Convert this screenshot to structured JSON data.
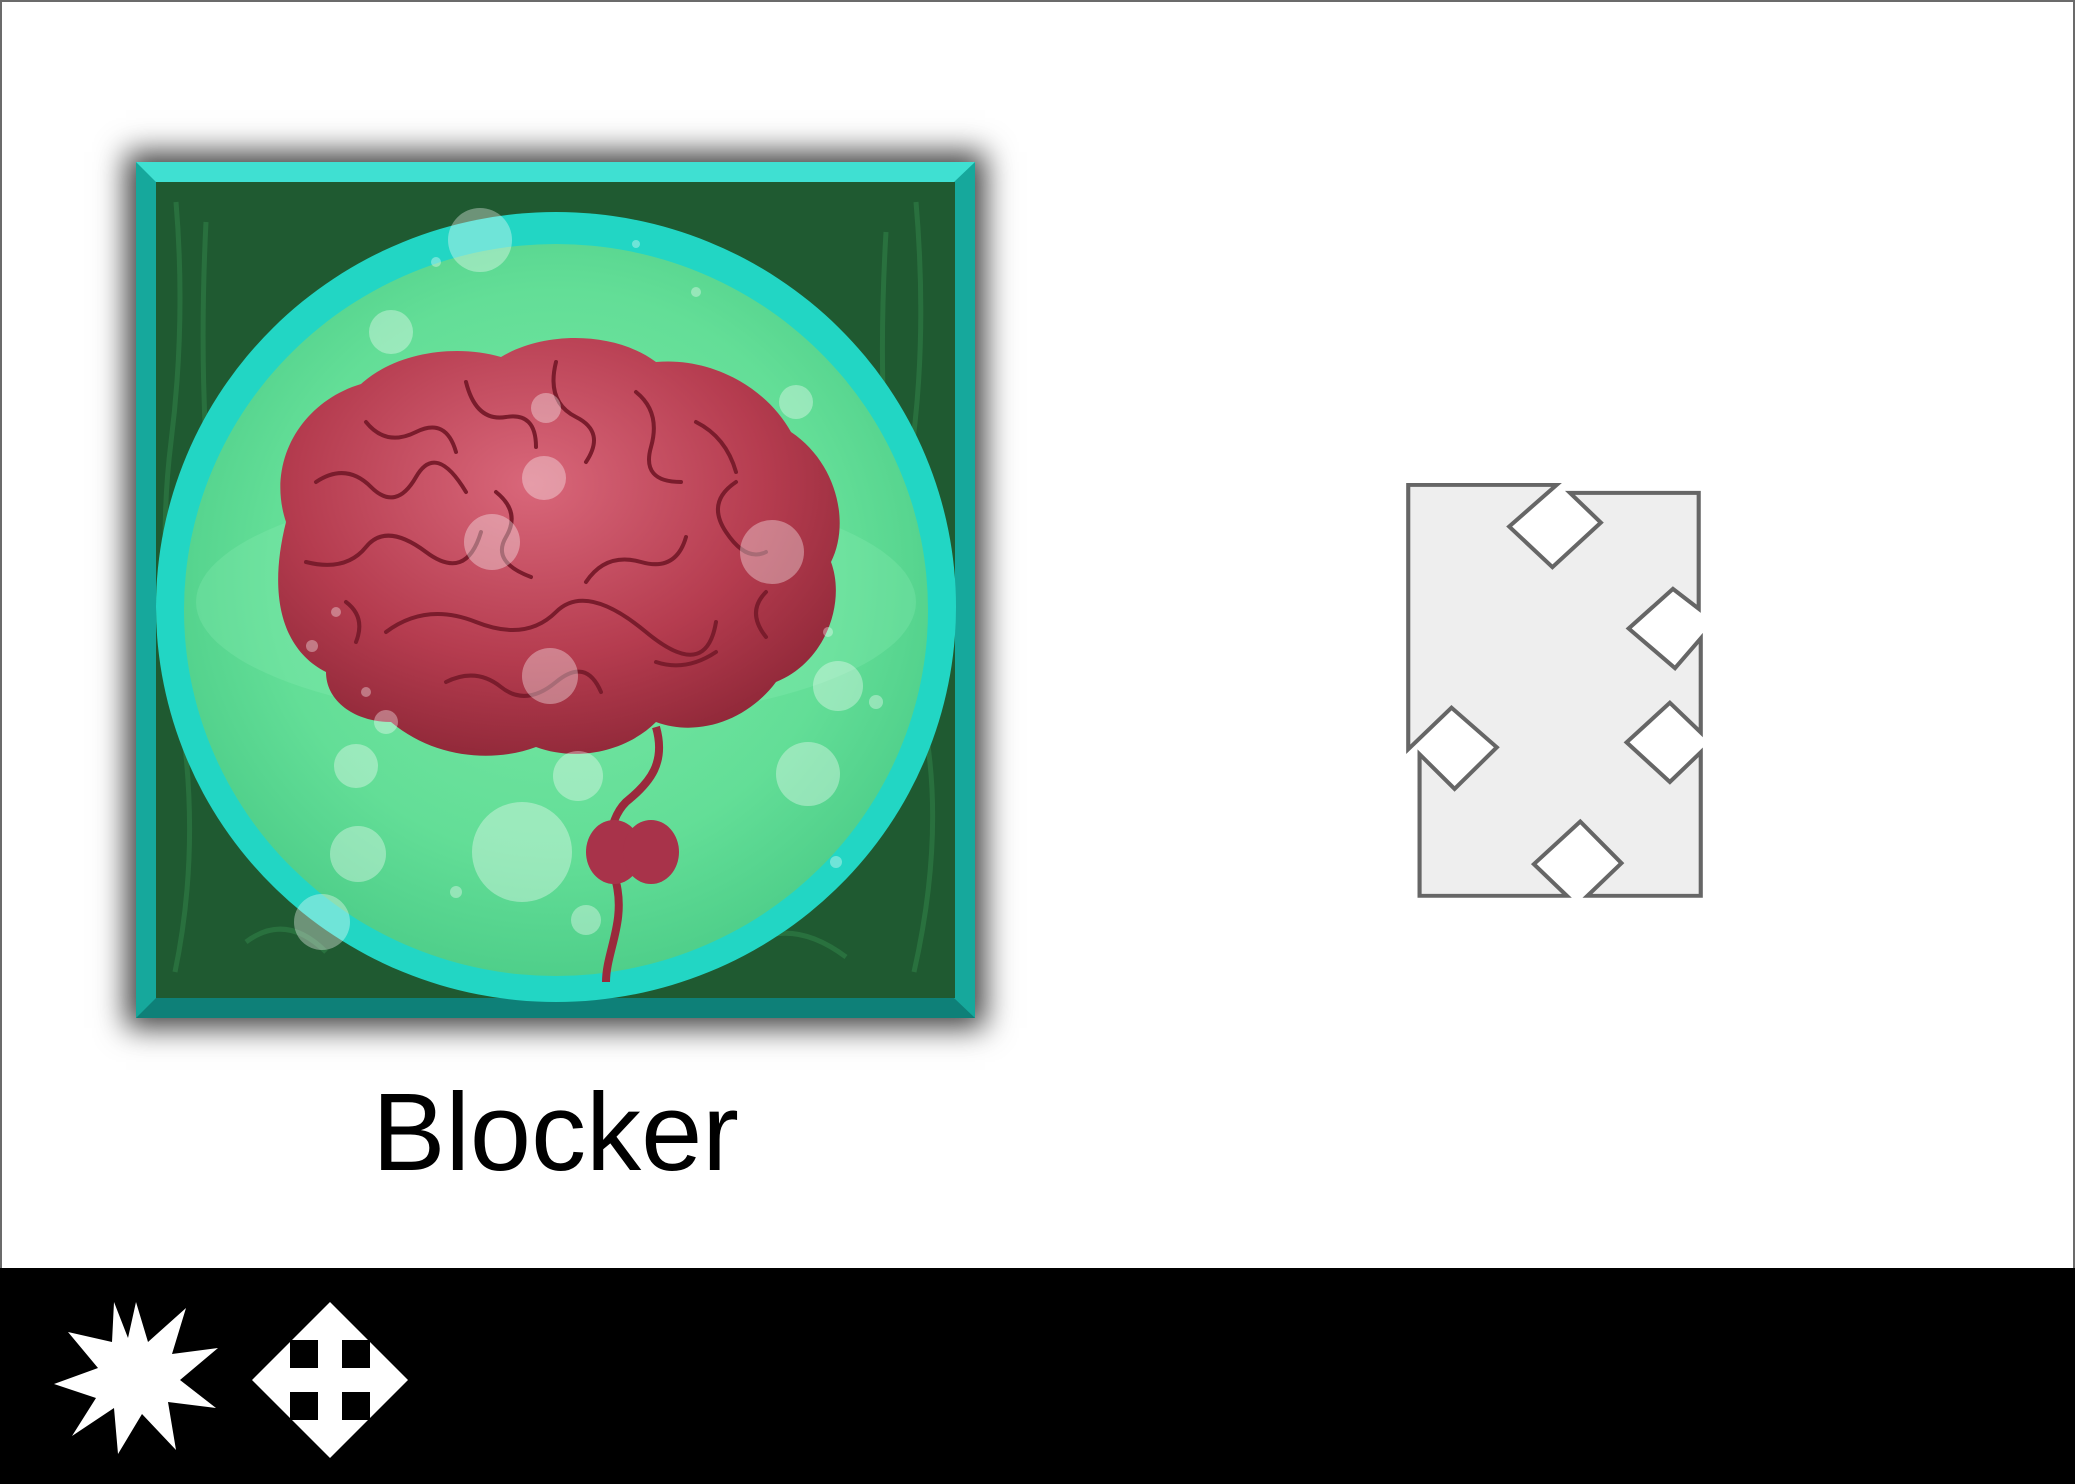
{
  "card": {
    "label": "Blocker",
    "image": "brain-in-jar-icon",
    "frame_color": "#1bc6b8",
    "background_color": "#1f5a31",
    "orb_color": "#66e09a",
    "brain_color": "#b53c4f"
  },
  "cursor_preview": {
    "icon": "move-cursor-icon",
    "fill": "#eeeeee",
    "stroke": "#666666"
  },
  "toolbar": {
    "background": "#000000",
    "tools": [
      {
        "name": "burst-tool",
        "icon": "burst-icon"
      },
      {
        "name": "move-tool",
        "icon": "move-arrows-icon"
      }
    ]
  }
}
